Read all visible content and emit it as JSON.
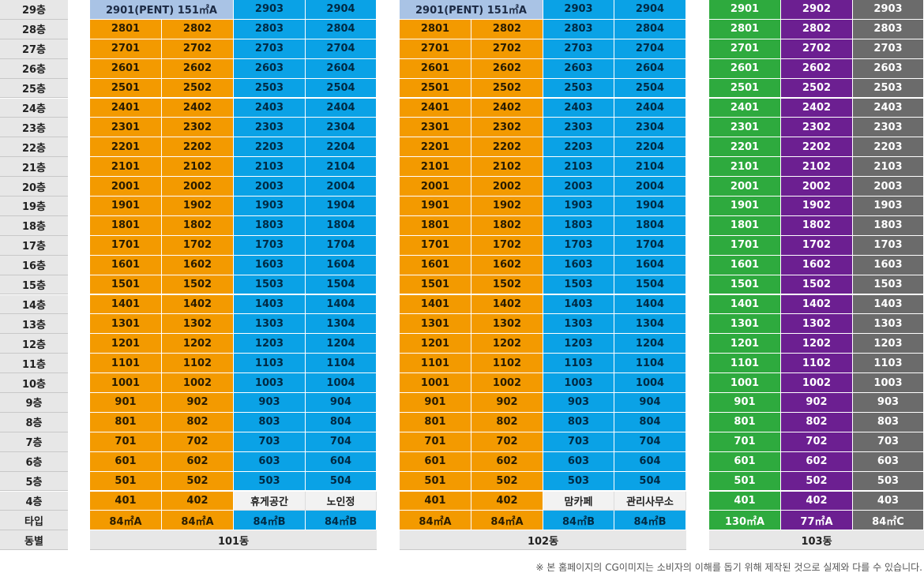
{
  "floor_labels": [
    "29층",
    "28층",
    "27층",
    "26층",
    "25층",
    "24층",
    "23층",
    "22층",
    "21층",
    "20층",
    "19층",
    "18층",
    "17층",
    "16층",
    "15층",
    "14층",
    "13층",
    "12층",
    "11층",
    "10층",
    "9층",
    "8층",
    "7층",
    "6층",
    "5층",
    "4층",
    "타입",
    "동별"
  ],
  "buildings": [
    {
      "name": "101동",
      "penthouse": {
        "label": "2901(PENT) 151㎡A"
      },
      "top_units": [
        "2903",
        "2904"
      ],
      "floor4": [
        "401",
        "402",
        "휴게공간",
        "노인정"
      ],
      "types": [
        "84㎡A",
        "84㎡A",
        "84㎡B",
        "84㎡B"
      ]
    },
    {
      "name": "102동",
      "penthouse": {
        "label": "2901(PENT) 151㎡A"
      },
      "top_units": [
        "2903",
        "2904"
      ],
      "floor4": [
        "401",
        "402",
        "맘카페",
        "관리사무소"
      ],
      "types": [
        "84㎡A",
        "84㎡A",
        "84㎡B",
        "84㎡B"
      ]
    },
    {
      "name": "103동",
      "top_units": [
        "2901",
        "2902",
        "2903"
      ],
      "floor4": [
        "401",
        "402",
        "403"
      ],
      "types": [
        "130㎡A",
        "77㎡A",
        "84㎡C"
      ]
    }
  ],
  "colors": {
    "type_a": "#f39a00",
    "type_b": "#0aa2e6",
    "type_130a": "#2eaa3e",
    "type_77a": "#6c1f91",
    "type_84c": "#6b6b6b",
    "penthouse": "#a9c3e5"
  },
  "footnote": "※ 본 홈페이지의 CG이미지는 소비자의 이해를 돕기 위해 제작된 것으로 실제와 다를 수 있습니다."
}
